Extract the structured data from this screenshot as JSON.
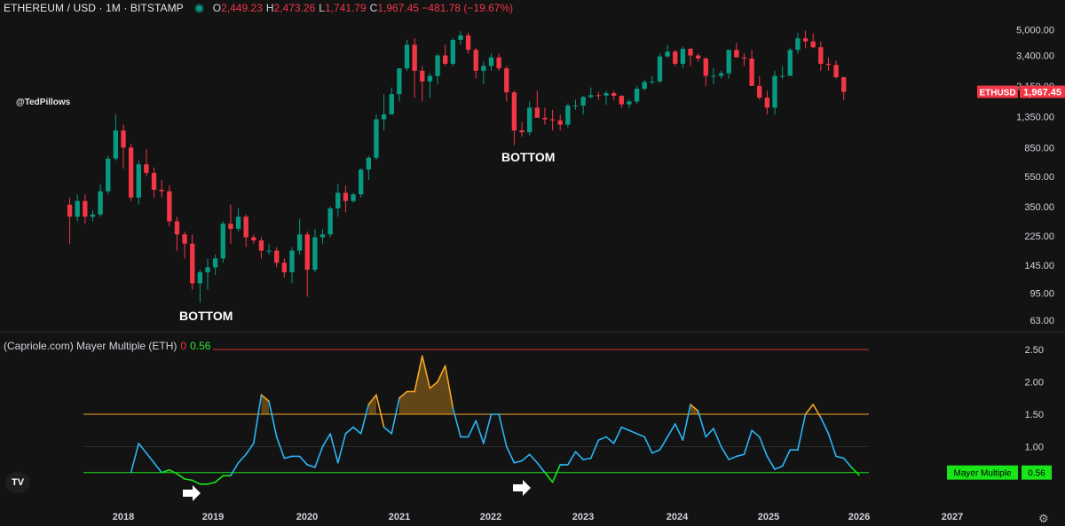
{
  "header": {
    "symbol": "ETHEREUM / USD · 1M · BITSTAMP",
    "o_label": "O",
    "o_value": "2,449.23",
    "h_label": "H",
    "h_value": "2,473.26",
    "l_label": "L",
    "l_value": "1,741.79",
    "c_label": "C",
    "c_value": "1,967.45 −481.78 (−19.67%)"
  },
  "author": "@TedPillows",
  "annotations": [
    "BOTTOM",
    "BOTTOM"
  ],
  "indicator": {
    "title": "(Capriole.com) Mayer Multiple (ETH)",
    "zero": "0",
    "value": "0.56",
    "badge_label": "Mayer Multiple",
    "badge_value": "0.56"
  },
  "price_badge": {
    "symbol": "ETHUSD",
    "value": "1,967.45"
  },
  "colors": {
    "up": "#089981",
    "down": "#f23645",
    "line": "#29b6f6",
    "hot": "#f5a623",
    "cold": "#19e619",
    "upper": "#f5a623",
    "lower": "#19e619",
    "top": "#d32f2f"
  },
  "icons": {
    "logo": "tradingview-logo-icon",
    "settings": "gear-icon",
    "arrows": "arrow-right-icon"
  },
  "chart_data": [
    {
      "type": "candlestick",
      "title": "ETHEREUM / USD · 1M · BITSTAMP",
      "scale": "log",
      "ylim": [
        56,
        6000
      ],
      "y_ticks": [
        {
          "value": 5000,
          "label": "5,000.00"
        },
        {
          "value": 3400,
          "label": "3,400.00"
        },
        {
          "value": 2150,
          "label": "2,150.00"
        },
        {
          "value": 1350,
          "label": "1,350.00"
        },
        {
          "value": 850,
          "label": "850.00"
        },
        {
          "value": 550,
          "label": "550.00"
        },
        {
          "value": 350,
          "label": "350.00"
        },
        {
          "value": 225,
          "label": "225.00"
        },
        {
          "value": 145,
          "label": "145.00"
        },
        {
          "value": 95,
          "label": "95.00"
        },
        {
          "value": 63,
          "label": "63.00"
        }
      ],
      "x_ticks": [
        "2018",
        "2019",
        "2020",
        "2021",
        "2022",
        "2023",
        "2024",
        "2025",
        "2026",
        "2027"
      ],
      "start": "2017-06",
      "candles": [
        [
          360,
          300,
          400,
          200
        ],
        [
          300,
          380,
          420,
          280
        ],
        [
          380,
          300,
          420,
          270
        ],
        [
          300,
          310,
          330,
          280
        ],
        [
          310,
          440,
          490,
          300
        ],
        [
          440,
          720,
          750,
          420
        ],
        [
          720,
          1100,
          1400,
          700
        ],
        [
          1100,
          850,
          1200,
          620
        ],
        [
          850,
          400,
          900,
          380
        ],
        [
          400,
          660,
          700,
          360
        ],
        [
          660,
          580,
          830,
          550
        ],
        [
          580,
          450,
          630,
          400
        ],
        [
          450,
          440,
          520,
          400
        ],
        [
          440,
          280,
          480,
          260
        ],
        [
          280,
          230,
          300,
          180
        ],
        [
          230,
          200,
          240,
          160
        ],
        [
          200,
          110,
          230,
          100
        ],
        [
          110,
          130,
          135,
          82
        ],
        [
          130,
          140,
          160,
          100
        ],
        [
          140,
          160,
          170,
          125
        ],
        [
          160,
          270,
          280,
          150
        ],
        [
          270,
          250,
          360,
          200
        ],
        [
          250,
          300,
          340,
          240
        ],
        [
          300,
          220,
          310,
          190
        ],
        [
          220,
          210,
          230,
          200
        ],
        [
          210,
          180,
          220,
          160
        ],
        [
          180,
          180,
          200,
          170
        ],
        [
          180,
          150,
          190,
          140
        ],
        [
          150,
          130,
          160,
          120
        ],
        [
          130,
          180,
          190,
          110
        ],
        [
          180,
          230,
          290,
          170
        ],
        [
          230,
          135,
          240,
          90
        ],
        [
          135,
          220,
          250,
          130
        ],
        [
          220,
          230,
          250,
          200
        ],
        [
          230,
          340,
          350,
          220
        ],
        [
          340,
          430,
          490,
          300
        ],
        [
          430,
          380,
          480,
          320
        ],
        [
          380,
          420,
          430,
          370
        ],
        [
          420,
          610,
          620,
          400
        ],
        [
          610,
          730,
          750,
          520
        ],
        [
          730,
          1300,
          1400,
          700
        ],
        [
          1300,
          1400,
          1900,
          1100
        ],
        [
          1400,
          1900,
          2100,
          1400
        ],
        [
          1900,
          2800,
          2800,
          1700
        ],
        [
          2800,
          4000,
          4300,
          2700
        ],
        [
          4000,
          2700,
          4400,
          1800
        ],
        [
          2700,
          2300,
          2900,
          1700
        ],
        [
          2300,
          2500,
          2600,
          1800
        ],
        [
          2500,
          3400,
          3500,
          2200
        ],
        [
          3400,
          3000,
          4000,
          2900
        ],
        [
          3000,
          4300,
          4400,
          2900
        ],
        [
          4300,
          4600,
          4900,
          4000
        ],
        [
          4600,
          3700,
          4800,
          3500
        ],
        [
          3700,
          2700,
          3800,
          2400
        ],
        [
          2700,
          2900,
          3100,
          2200
        ],
        [
          2900,
          3300,
          3500,
          2700
        ],
        [
          3300,
          2800,
          3500,
          2700
        ],
        [
          2800,
          1950,
          2900,
          1700
        ],
        [
          1950,
          1100,
          2000,
          880
        ],
        [
          1100,
          1070,
          1250,
          1000
        ],
        [
          1070,
          1550,
          1700,
          1020
        ],
        [
          1550,
          1330,
          2000,
          1400
        ],
        [
          1330,
          1300,
          1550,
          1200
        ],
        [
          1300,
          1280,
          1500,
          1100
        ],
        [
          1280,
          1200,
          1400,
          1100
        ],
        [
          1200,
          1600,
          1650,
          1150
        ],
        [
          1600,
          1600,
          1750,
          1500
        ],
        [
          1600,
          1820,
          1850,
          1400
        ],
        [
          1820,
          1870,
          2100,
          1780
        ],
        [
          1870,
          1860,
          1970,
          1740
        ],
        [
          1860,
          1930,
          2000,
          1620
        ],
        [
          1930,
          1850,
          2000,
          1730
        ],
        [
          1850,
          1630,
          1870,
          1550
        ],
        [
          1630,
          1700,
          1750,
          1540
        ],
        [
          1700,
          2060,
          2150,
          1650
        ],
        [
          2060,
          2280,
          2350,
          2000
        ],
        [
          2280,
          2300,
          2500,
          2200
        ],
        [
          2300,
          3350,
          3500,
          2250
        ],
        [
          3350,
          3600,
          4000,
          3300
        ],
        [
          3600,
          3000,
          3700,
          2900
        ],
        [
          3000,
          3760,
          3900,
          2800
        ],
        [
          3760,
          3400,
          3800,
          2900
        ],
        [
          3400,
          3250,
          3500,
          3100
        ],
        [
          3250,
          2500,
          3300,
          2150
        ],
        [
          2500,
          2500,
          2800,
          2200
        ],
        [
          2500,
          2600,
          2700,
          2400
        ],
        [
          2600,
          3700,
          3700,
          2400
        ],
        [
          3700,
          3300,
          4100,
          3500
        ],
        [
          3300,
          3250,
          3500,
          2900
        ],
        [
          3250,
          2150,
          3700,
          2150
        ],
        [
          2150,
          1800,
          2500,
          1750
        ],
        [
          1800,
          1550,
          2000,
          1400
        ],
        [
          1550,
          2500,
          2700,
          1400
        ],
        [
          2500,
          2500,
          2900,
          2400
        ],
        [
          2500,
          3700,
          3800,
          2500
        ],
        [
          3700,
          4400,
          4800,
          3500
        ],
        [
          4400,
          4200,
          4950,
          3800
        ],
        [
          4200,
          3850,
          4750,
          3800
        ],
        [
          3850,
          3000,
          4200,
          2700
        ],
        [
          3000,
          2950,
          3300,
          2700
        ],
        [
          2950,
          2450,
          3150,
          2400
        ],
        [
          2450,
          1967,
          2470,
          1740
        ]
      ],
      "price_label": "1,967.45"
    },
    {
      "type": "line",
      "title": "(Capriole.com) Mayer Multiple (ETH)",
      "ylim": [
        0.3,
        2.7
      ],
      "y_ticks": [
        2.5,
        2.0,
        1.5,
        1.0
      ],
      "levels": {
        "top": 2.5,
        "upper": 1.5,
        "mid": 1.0,
        "lower": 0.6
      },
      "start": "2018-02",
      "values": [
        0.6,
        1.05,
        0.9,
        0.75,
        0.6,
        0.64,
        0.58,
        0.5,
        0.48,
        0.42,
        0.42,
        0.45,
        0.55,
        0.55,
        0.75,
        0.88,
        1.05,
        1.8,
        1.7,
        1.15,
        0.82,
        0.85,
        0.85,
        0.72,
        0.68,
        1.0,
        1.2,
        0.75,
        1.2,
        1.3,
        1.2,
        1.65,
        1.8,
        1.3,
        1.2,
        1.75,
        1.85,
        1.85,
        2.4,
        1.9,
        2.0,
        2.25,
        1.6,
        1.15,
        1.15,
        1.4,
        1.05,
        1.5,
        1.5,
        1.0,
        0.75,
        0.78,
        0.88,
        0.75,
        0.6,
        0.45,
        0.72,
        0.72,
        0.92,
        0.8,
        0.82,
        1.1,
        1.15,
        1.05,
        1.3,
        1.25,
        1.2,
        1.15,
        0.9,
        0.95,
        1.15,
        1.35,
        1.1,
        1.65,
        1.55,
        1.15,
        1.28,
        1.0,
        0.8,
        0.85,
        0.88,
        1.25,
        1.15,
        0.85,
        0.65,
        0.7,
        0.95,
        0.95,
        1.5,
        1.65,
        1.45,
        1.2,
        0.85,
        0.82,
        0.68,
        0.56
      ]
    }
  ]
}
